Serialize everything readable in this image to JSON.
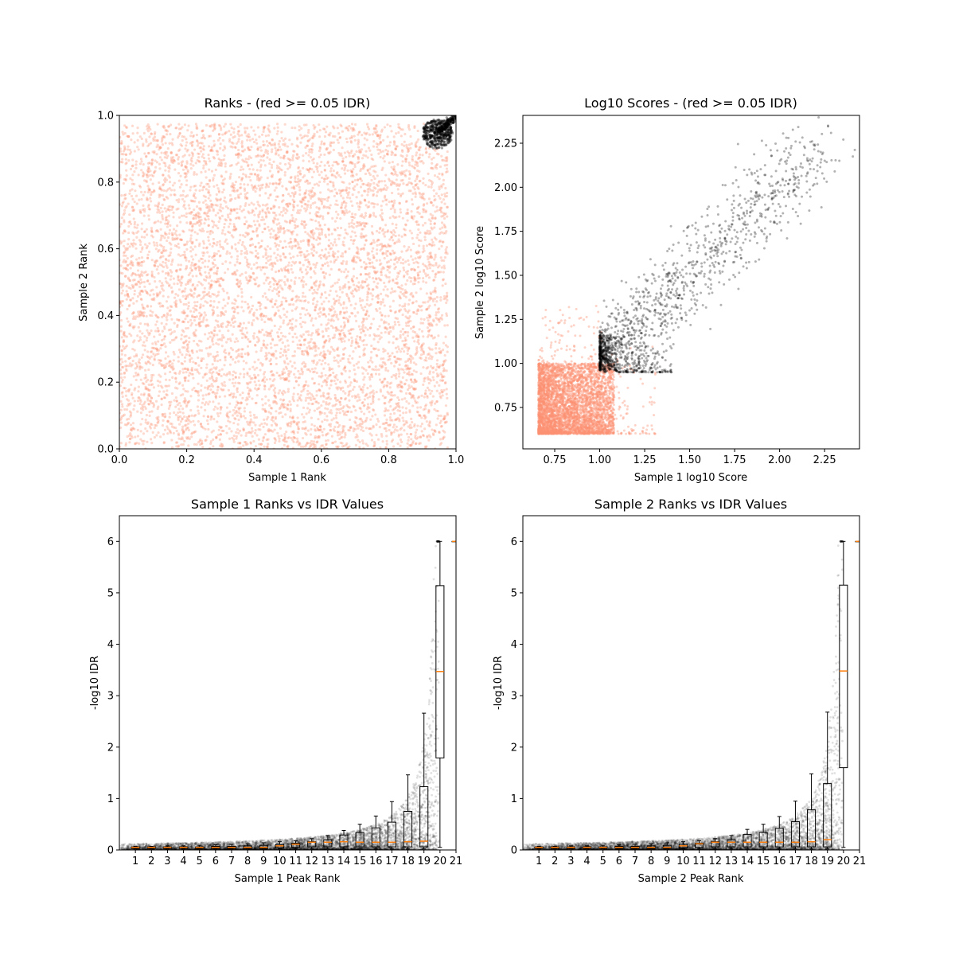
{
  "chart_data": [
    {
      "type": "scatter",
      "title": "Ranks - (red >= 0.05 IDR)",
      "xlabel": "Sample 1 Rank",
      "ylabel": "Sample 2 Rank",
      "xlim": [
        0,
        1
      ],
      "ylim": [
        0,
        1
      ],
      "xticks": [
        "0.0",
        "0.2",
        "0.4",
        "0.6",
        "0.8",
        "1.0"
      ],
      "yticks": [
        "0.0",
        "0.2",
        "0.4",
        "0.6",
        "0.8",
        "1.0"
      ],
      "grid": false,
      "series": [
        {
          "color": "#fc9272",
          "description_range": {
            "x": [
              0,
              0.97
            ],
            "y": [
              0,
              0.97
            ]
          }
        },
        {
          "color": "#000000",
          "description_range": {
            "x": [
              0.89,
              1.0
            ],
            "y": [
              0.89,
              1.0
            ]
          }
        }
      ]
    },
    {
      "type": "scatter",
      "title": "Log10 Scores - (red >= 0.05 IDR)",
      "xlabel": "Sample 1 log10 Score",
      "ylabel": "Sample 2 log10 Score",
      "xlim": [
        0.573,
        2.444
      ],
      "ylim": [
        0.515,
        2.408
      ],
      "xticks": [
        "0.75",
        "1.00",
        "1.25",
        "1.50",
        "1.75",
        "2.00",
        "2.25"
      ],
      "yticks": [
        "0.75",
        "1.00",
        "1.25",
        "1.50",
        "1.75",
        "2.00",
        "2.25"
      ],
      "grid": false,
      "series": [
        {
          "color": "#fc9272",
          "description_range": {
            "x": [
              0.66,
              1.3
            ],
            "y": [
              0.6,
              1.33
            ]
          }
        },
        {
          "color": "#000000",
          "description_range": {
            "x": [
              1.0,
              2.36
            ],
            "y": [
              0.95,
              2.32
            ]
          }
        }
      ]
    },
    {
      "type": "boxplot+scatter",
      "title": "Sample 1 Ranks vs IDR Values",
      "xlabel": "Sample 1 Peak Rank",
      "ylabel": "-log10 IDR",
      "xlim": [
        0,
        21
      ],
      "ylim": [
        0,
        6.5
      ],
      "xticks": [
        "1",
        "2",
        "3",
        "4",
        "5",
        "6",
        "7",
        "8",
        "9",
        "10",
        "11",
        "12",
        "13",
        "14",
        "15",
        "16",
        "17",
        "18",
        "19",
        "20",
        "21"
      ],
      "yticks": [
        "0",
        "1",
        "2",
        "3",
        "4",
        "5",
        "6"
      ],
      "point_color": "#000000",
      "median_color": "#ff7f0e",
      "boxes": [
        {
          "pos": 1,
          "q1": 0.03,
          "median": 0.05,
          "q3": 0.06,
          "whisker_low": 0.02,
          "whisker_high": 0.07
        },
        {
          "pos": 2,
          "q1": 0.03,
          "median": 0.05,
          "q3": 0.06,
          "whisker_low": 0.02,
          "whisker_high": 0.07
        },
        {
          "pos": 3,
          "q1": 0.03,
          "median": 0.05,
          "q3": 0.06,
          "whisker_low": 0.02,
          "whisker_high": 0.08
        },
        {
          "pos": 4,
          "q1": 0.03,
          "median": 0.05,
          "q3": 0.06,
          "whisker_low": 0.02,
          "whisker_high": 0.08
        },
        {
          "pos": 5,
          "q1": 0.03,
          "median": 0.05,
          "q3": 0.06,
          "whisker_low": 0.02,
          "whisker_high": 0.09
        },
        {
          "pos": 6,
          "q1": 0.03,
          "median": 0.05,
          "q3": 0.07,
          "whisker_low": 0.02,
          "whisker_high": 0.1
        },
        {
          "pos": 7,
          "q1": 0.03,
          "median": 0.05,
          "q3": 0.07,
          "whisker_low": 0.02,
          "whisker_high": 0.11
        },
        {
          "pos": 8,
          "q1": 0.03,
          "median": 0.05,
          "q3": 0.08,
          "whisker_low": 0.02,
          "whisker_high": 0.12
        },
        {
          "pos": 9,
          "q1": 0.03,
          "median": 0.05,
          "q3": 0.09,
          "whisker_low": 0.02,
          "whisker_high": 0.14
        },
        {
          "pos": 10,
          "q1": 0.04,
          "median": 0.08,
          "q3": 0.11,
          "whisker_low": 0.02,
          "whisker_high": 0.16
        },
        {
          "pos": 11,
          "q1": 0.05,
          "median": 0.11,
          "q3": 0.13,
          "whisker_low": 0.02,
          "whisker_high": 0.18
        },
        {
          "pos": 12,
          "q1": 0.06,
          "median": 0.15,
          "q3": 0.16,
          "whisker_low": 0.02,
          "whisker_high": 0.22
        },
        {
          "pos": 13,
          "q1": 0.06,
          "median": 0.15,
          "q3": 0.2,
          "whisker_low": 0.02,
          "whisker_high": 0.28
        },
        {
          "pos": 14,
          "q1": 0.06,
          "median": 0.16,
          "q3": 0.29,
          "whisker_low": 0.02,
          "whisker_high": 0.38
        },
        {
          "pos": 15,
          "q1": 0.06,
          "median": 0.15,
          "q3": 0.34,
          "whisker_low": 0.02,
          "whisker_high": 0.5
        },
        {
          "pos": 16,
          "q1": 0.06,
          "median": 0.15,
          "q3": 0.43,
          "whisker_low": 0.02,
          "whisker_high": 0.66
        },
        {
          "pos": 17,
          "q1": 0.06,
          "median": 0.15,
          "q3": 0.54,
          "whisker_low": 0.02,
          "whisker_high": 0.94
        },
        {
          "pos": 18,
          "q1": 0.06,
          "median": 0.16,
          "q3": 0.75,
          "whisker_low": 0.02,
          "whisker_high": 1.46
        },
        {
          "pos": 19,
          "q1": 0.06,
          "median": 0.17,
          "q3": 1.23,
          "whisker_low": 0.02,
          "whisker_high": 2.66
        },
        {
          "pos": 20,
          "q1": 1.79,
          "median": 3.47,
          "q3": 5.14,
          "whisker_low": 0.05,
          "whisker_high": 6.0
        },
        {
          "pos": 21,
          "q1": 6.0,
          "median": 6.0,
          "q3": 6.0,
          "whisker_low": 6.0,
          "whisker_high": 6.0
        }
      ]
    },
    {
      "type": "boxplot+scatter",
      "title": "Sample 2 Ranks vs IDR Values",
      "xlabel": "Sample 2 Peak Rank",
      "ylabel": "-log10 IDR",
      "xlim": [
        0,
        21
      ],
      "ylim": [
        0,
        6.5
      ],
      "xticks": [
        "1",
        "2",
        "3",
        "4",
        "5",
        "6",
        "7",
        "8",
        "9",
        "10",
        "11",
        "12",
        "13",
        "14",
        "15",
        "16",
        "17",
        "18",
        "19",
        "20",
        "21"
      ],
      "yticks": [
        "0",
        "1",
        "2",
        "3",
        "4",
        "5",
        "6"
      ],
      "point_color": "#000000",
      "median_color": "#ff7f0e",
      "boxes": [
        {
          "pos": 1,
          "q1": 0.03,
          "median": 0.05,
          "q3": 0.06,
          "whisker_low": 0.02,
          "whisker_high": 0.07
        },
        {
          "pos": 2,
          "q1": 0.03,
          "median": 0.05,
          "q3": 0.06,
          "whisker_low": 0.02,
          "whisker_high": 0.07
        },
        {
          "pos": 3,
          "q1": 0.03,
          "median": 0.05,
          "q3": 0.06,
          "whisker_low": 0.02,
          "whisker_high": 0.08
        },
        {
          "pos": 4,
          "q1": 0.03,
          "median": 0.05,
          "q3": 0.06,
          "whisker_low": 0.02,
          "whisker_high": 0.08
        },
        {
          "pos": 5,
          "q1": 0.03,
          "median": 0.05,
          "q3": 0.06,
          "whisker_low": 0.02,
          "whisker_high": 0.09
        },
        {
          "pos": 6,
          "q1": 0.03,
          "median": 0.05,
          "q3": 0.07,
          "whisker_low": 0.02,
          "whisker_high": 0.1
        },
        {
          "pos": 7,
          "q1": 0.03,
          "median": 0.05,
          "q3": 0.07,
          "whisker_low": 0.02,
          "whisker_high": 0.11
        },
        {
          "pos": 8,
          "q1": 0.03,
          "median": 0.05,
          "q3": 0.08,
          "whisker_low": 0.02,
          "whisker_high": 0.12
        },
        {
          "pos": 9,
          "q1": 0.03,
          "median": 0.05,
          "q3": 0.09,
          "whisker_low": 0.02,
          "whisker_high": 0.14
        },
        {
          "pos": 10,
          "q1": 0.04,
          "median": 0.08,
          "q3": 0.11,
          "whisker_low": 0.02,
          "whisker_high": 0.16
        },
        {
          "pos": 11,
          "q1": 0.05,
          "median": 0.12,
          "q3": 0.13,
          "whisker_low": 0.02,
          "whisker_high": 0.18
        },
        {
          "pos": 12,
          "q1": 0.06,
          "median": 0.15,
          "q3": 0.16,
          "whisker_low": 0.02,
          "whisker_high": 0.22
        },
        {
          "pos": 13,
          "q1": 0.06,
          "median": 0.15,
          "q3": 0.2,
          "whisker_low": 0.02,
          "whisker_high": 0.28
        },
        {
          "pos": 14,
          "q1": 0.06,
          "median": 0.15,
          "q3": 0.3,
          "whisker_low": 0.02,
          "whisker_high": 0.4
        },
        {
          "pos": 15,
          "q1": 0.06,
          "median": 0.15,
          "q3": 0.34,
          "whisker_low": 0.02,
          "whisker_high": 0.5
        },
        {
          "pos": 16,
          "q1": 0.06,
          "median": 0.15,
          "q3": 0.42,
          "whisker_low": 0.02,
          "whisker_high": 0.65
        },
        {
          "pos": 17,
          "q1": 0.06,
          "median": 0.15,
          "q3": 0.55,
          "whisker_low": 0.02,
          "whisker_high": 0.95
        },
        {
          "pos": 18,
          "q1": 0.06,
          "median": 0.16,
          "q3": 0.78,
          "whisker_low": 0.02,
          "whisker_high": 1.48
        },
        {
          "pos": 19,
          "q1": 0.06,
          "median": 0.2,
          "q3": 1.29,
          "whisker_low": 0.02,
          "whisker_high": 2.68
        },
        {
          "pos": 20,
          "q1": 1.6,
          "median": 3.48,
          "q3": 5.15,
          "whisker_low": 0.05,
          "whisker_high": 6.0
        },
        {
          "pos": 21,
          "q1": 6.0,
          "median": 6.0,
          "q3": 6.0,
          "whisker_low": 6.0,
          "whisker_high": 6.0
        }
      ]
    }
  ]
}
